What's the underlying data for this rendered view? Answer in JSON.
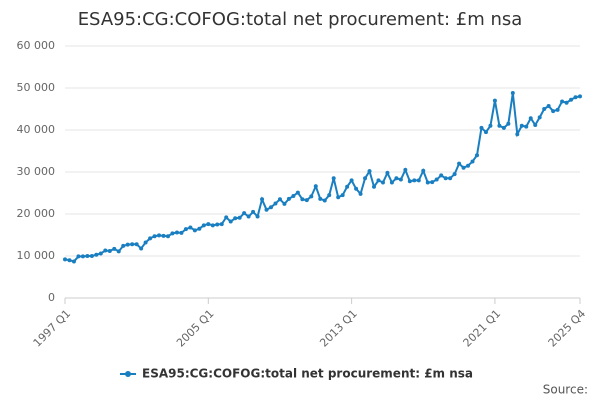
{
  "chart_data": {
    "type": "line",
    "title": "ESA95:CG:COFOG:total net procurement: £m nsa",
    "source": "Source:",
    "categories": [
      "1997 Q1",
      null,
      null,
      null,
      null,
      null,
      null,
      null,
      null,
      null,
      null,
      null,
      null,
      null,
      null,
      null,
      null,
      null,
      null,
      null,
      null,
      null,
      null,
      null,
      null,
      null,
      null,
      null,
      null,
      null,
      null,
      null,
      "2005 Q1",
      null,
      null,
      null,
      null,
      null,
      null,
      null,
      null,
      null,
      null,
      null,
      null,
      null,
      null,
      null,
      null,
      null,
      null,
      null,
      null,
      null,
      null,
      null,
      null,
      null,
      null,
      null,
      null,
      null,
      null,
      null,
      "2013 Q1",
      null,
      null,
      null,
      null,
      null,
      null,
      null,
      null,
      null,
      null,
      null,
      null,
      null,
      null,
      null,
      null,
      null,
      null,
      null,
      null,
      null,
      null,
      null,
      null,
      null,
      null,
      null,
      null,
      null,
      null,
      null,
      "2021 Q1",
      null,
      null,
      null,
      null,
      null,
      null,
      null,
      null,
      null,
      null,
      null,
      null,
      null,
      null,
      null,
      null,
      null,
      null,
      "2025 Q4"
    ],
    "series": [
      {
        "name": "ESA95:CG:COFOG:total net procurement: £m nsa",
        "color": "#1a7fc1",
        "values": [
          9200,
          9000,
          8700,
          9900,
          9900,
          10000,
          10000,
          10300,
          10600,
          11300,
          11200,
          11700,
          11100,
          12400,
          12700,
          12800,
          12800,
          11800,
          13200,
          14200,
          14700,
          14900,
          14800,
          14700,
          15400,
          15600,
          15500,
          16400,
          16800,
          16100,
          16500,
          17300,
          17600,
          17300,
          17500,
          17600,
          19200,
          18200,
          19000,
          19100,
          20200,
          19400,
          20500,
          19400,
          23500,
          21000,
          21600,
          22500,
          23500,
          22400,
          23600,
          24300,
          25100,
          23500,
          23300,
          24200,
          26600,
          23600,
          23200,
          24500,
          28500,
          24000,
          24500,
          26500,
          28000,
          26000,
          24800,
          28500,
          30200,
          26500,
          28000,
          27500,
          29800,
          27500,
          28500,
          28200,
          30500,
          27800,
          28000,
          28000,
          30300,
          27500,
          27600,
          28200,
          29200,
          28500,
          28500,
          29500,
          32000,
          31000,
          31500,
          32500,
          34000,
          40500,
          39500,
          41000,
          47000,
          41000,
          40500,
          41500,
          48800,
          39000,
          41000,
          40800,
          42800,
          41200,
          43000,
          45000,
          45700,
          44500,
          44800,
          46800,
          46500,
          47200,
          47800,
          48000
        ]
      }
    ],
    "ylim": [
      0,
      60000
    ],
    "yticks": [
      0,
      {
        "value": 10000,
        "label": "10 000"
      },
      {
        "value": 20000,
        "label": "20 000"
      },
      {
        "value": 30000,
        "label": "30 000"
      },
      {
        "value": 40000,
        "label": "40 000"
      },
      {
        "value": 50000,
        "label": "50 000"
      },
      {
        "value": 60000,
        "label": "60 000"
      }
    ],
    "grid": true,
    "legend": "bottom"
  }
}
